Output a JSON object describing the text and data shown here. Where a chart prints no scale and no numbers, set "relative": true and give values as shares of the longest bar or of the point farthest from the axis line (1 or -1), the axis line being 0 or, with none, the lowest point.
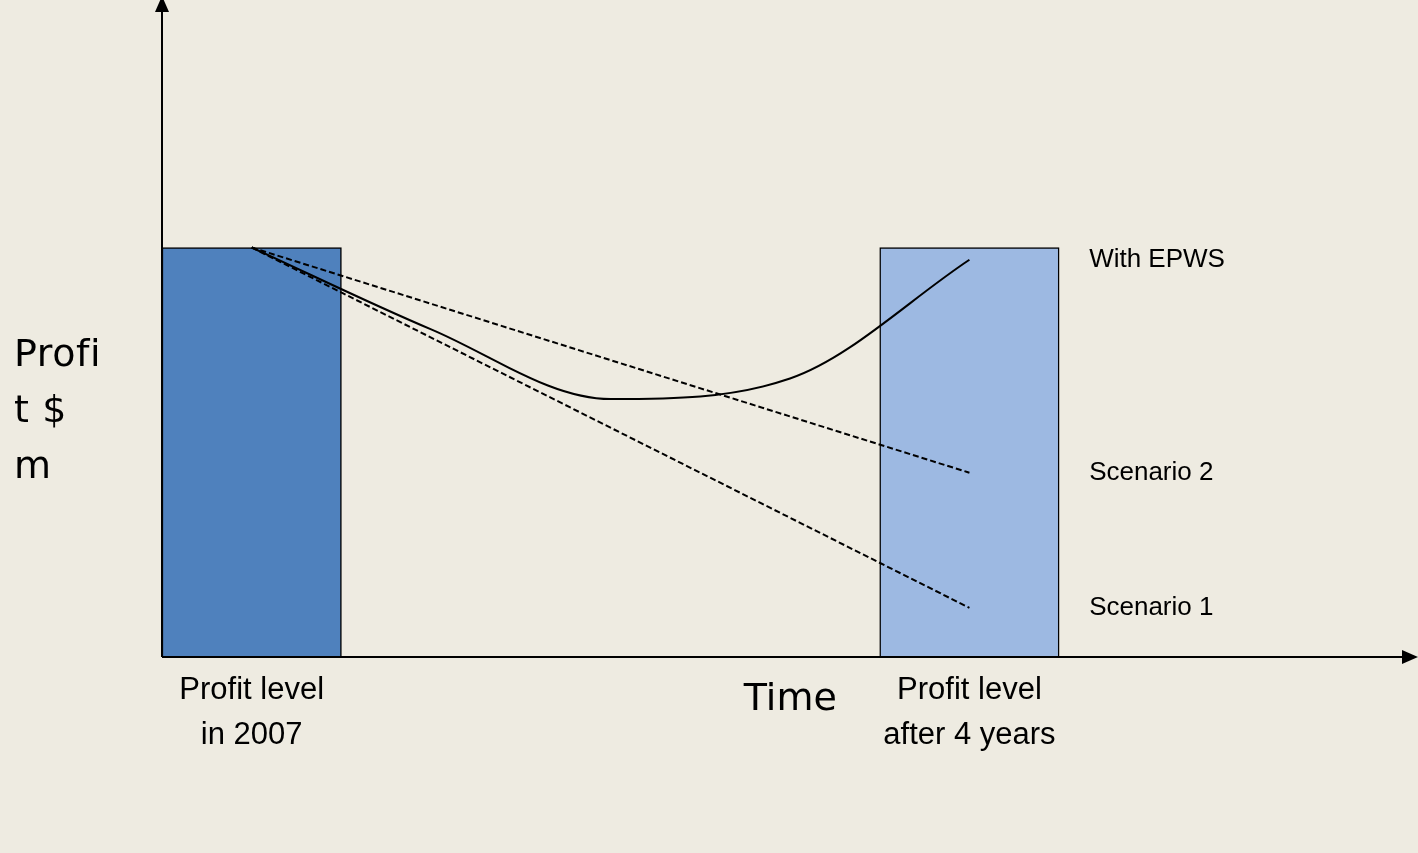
{
  "chart_data": {
    "type": "bar",
    "relative": true,
    "xlabel": "Time",
    "ylabel": "Profit $ m",
    "categories": [
      "Profit level in 2007",
      null,
      null,
      null,
      "Profit level after 4 years",
      null,
      null
    ],
    "series": [
      {
        "colors": [
          "#4f81bd",
          null,
          null,
          null,
          "#9db9e2",
          null,
          null
        ],
        "values": [
          1,
          null,
          null,
          null,
          1,
          null,
          null
        ]
      },
      {
        "type": "line",
        "name": "With EPWS",
        "color": "#000000",
        "line_style": "solid",
        "values": [
          1,
          0.8,
          0.63,
          0.68,
          0.97,
          null,
          null
        ]
      },
      {
        "type": "line",
        "name": "Scenario 2",
        "color": "#000000",
        "line_style": "dashed",
        "values": [
          1,
          null,
          null,
          null,
          0.45,
          null,
          null
        ]
      },
      {
        "type": "line",
        "name": "Scenario 1",
        "color": "#000000",
        "line_style": "dashed",
        "values": [
          1,
          null,
          null,
          null,
          0.12,
          null,
          null
        ]
      }
    ],
    "legend": false,
    "marker": "none"
  }
}
